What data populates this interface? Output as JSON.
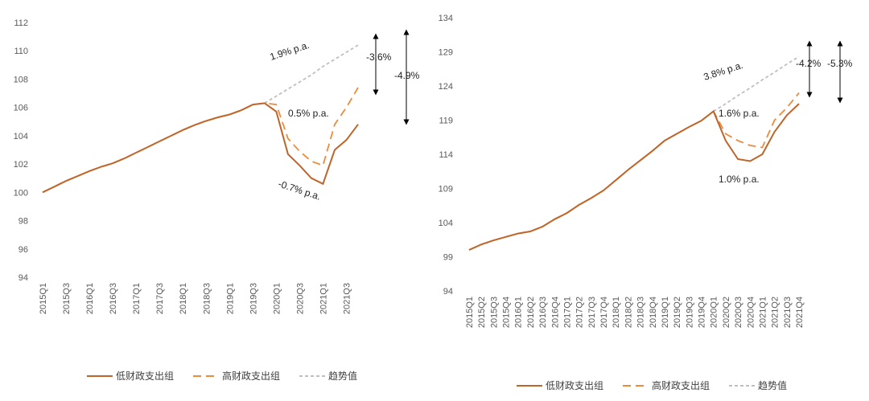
{
  "chart_data": [
    {
      "type": "line",
      "categories": [
        "2015Q1",
        null,
        "2015Q3",
        null,
        "2016Q1",
        null,
        "2016Q3",
        null,
        "2017Q1",
        null,
        "2017Q3",
        null,
        "2018Q1",
        null,
        "2018Q3",
        null,
        "2019Q1",
        null,
        "2019Q3",
        null,
        "2020Q1",
        null,
        "2020Q3",
        null,
        "2021Q1",
        null,
        "2021Q3",
        null
      ],
      "series": [
        {
          "name": "低财政支出组",
          "color": "#c0652a",
          "dash": "solid",
          "values": [
            100,
            100.4,
            100.8,
            101.15,
            101.5,
            101.8,
            102.05,
            102.4,
            102.8,
            103.2,
            103.6,
            104.0,
            104.4,
            104.75,
            105.05,
            105.3,
            105.5,
            105.8,
            106.2,
            106.3,
            105.7,
            102.7,
            101.9,
            101.0,
            100.6,
            103.0,
            103.7,
            104.8
          ]
        },
        {
          "name": "高财政支出组",
          "color": "#ee8a3a",
          "dash": "dashed",
          "values": [
            100,
            100.4,
            100.8,
            101.15,
            101.5,
            101.8,
            102.05,
            102.4,
            102.8,
            103.2,
            103.6,
            104.0,
            104.4,
            104.75,
            105.05,
            105.3,
            105.5,
            105.8,
            106.2,
            106.3,
            106.2,
            103.8,
            102.9,
            102.2,
            101.9,
            104.8,
            106.0,
            107.4
          ]
        },
        {
          "name": "趋势值",
          "color": "#bfbfbf",
          "dash": "dotted",
          "values": [
            null,
            null,
            null,
            null,
            null,
            null,
            null,
            null,
            null,
            null,
            null,
            null,
            null,
            null,
            null,
            null,
            null,
            null,
            null,
            106.3,
            106.8,
            107.3,
            107.8,
            108.3,
            108.9,
            109.4,
            109.9,
            110.4
          ]
        }
      ],
      "ylim": [
        94,
        112
      ],
      "yticks": [
        94,
        96,
        98,
        100,
        102,
        104,
        106,
        108,
        110,
        112
      ],
      "annotations": [
        "1.9% p.a.",
        "0.5% p.a.",
        "-0.7% p.a.",
        "-3.6%",
        "-4.9%"
      ]
    },
    {
      "type": "line",
      "categories": [
        "2015Q1",
        "2015Q2",
        "2015Q3",
        "2015Q4",
        "2016Q1",
        "2016Q2",
        "2016Q3",
        "2016Q4",
        "2017Q1",
        "2017Q2",
        "2017Q3",
        "2017Q4",
        "2018Q1",
        "2018Q2",
        "2018Q3",
        "2018Q4",
        "2019Q1",
        "2019Q2",
        "2019Q3",
        "2019Q4",
        "2020Q1",
        "2020Q2",
        "2020Q3",
        "2020Q4",
        "2021Q1",
        "2021Q2",
        "2021Q3",
        "2021Q4"
      ],
      "series": [
        {
          "name": "低财政支出组",
          "color": "#c0652a",
          "dash": "solid",
          "values": [
            100,
            100.8,
            101.4,
            101.9,
            102.4,
            102.7,
            103.4,
            104.5,
            105.4,
            106.6,
            107.6,
            108.7,
            110.2,
            111.7,
            113.1,
            114.5,
            116.0,
            117.0,
            118.0,
            118.9,
            120.3,
            116.0,
            113.3,
            113.0,
            114.0,
            117.3,
            119.7,
            121.4
          ]
        },
        {
          "name": "高财政支出组",
          "color": "#ee8a3a",
          "dash": "dashed",
          "values": [
            100,
            100.8,
            101.4,
            101.9,
            102.4,
            102.7,
            103.4,
            104.5,
            105.4,
            106.6,
            107.6,
            108.7,
            110.2,
            111.7,
            113.1,
            114.5,
            116.0,
            117.0,
            118.0,
            118.9,
            120.3,
            117.0,
            116.0,
            115.3,
            115.0,
            119.0,
            120.8,
            123.0
          ]
        },
        {
          "name": "趋势值",
          "color": "#bfbfbf",
          "dash": "dotted",
          "values": [
            null,
            null,
            null,
            null,
            null,
            null,
            null,
            null,
            null,
            null,
            null,
            null,
            null,
            null,
            null,
            null,
            null,
            null,
            null,
            null,
            120.3,
            121.4,
            122.6,
            123.7,
            124.9,
            126.0,
            127.2,
            128.3
          ]
        }
      ],
      "ylim": [
        94,
        134
      ],
      "yticks": [
        94,
        99,
        104,
        109,
        114,
        119,
        124,
        129,
        134
      ],
      "annotations": [
        "3.8% p.a.",
        "1.6% p.a.",
        "1.0% p.a.",
        "-4.2%",
        "-5.3%"
      ]
    }
  ]
}
